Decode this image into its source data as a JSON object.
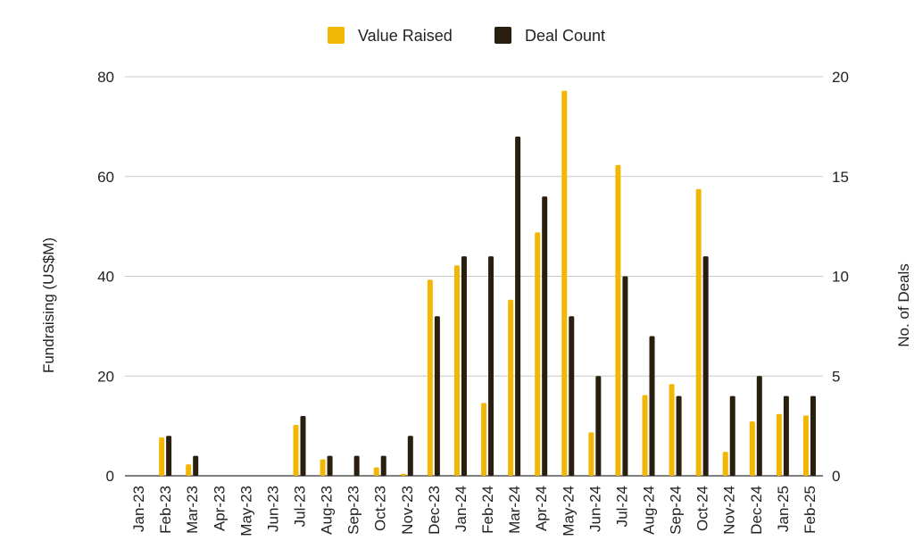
{
  "chart_data": {
    "type": "bar",
    "categories": [
      "Jan-23",
      "Feb-23",
      "Mar-23",
      "Apr-23",
      "May-23",
      "Jun-23",
      "Jul-23",
      "Aug-23",
      "Sep-23",
      "Oct-23",
      "Nov-23",
      "Dec-23",
      "Jan-24",
      "Feb-24",
      "Mar-24",
      "Apr-24",
      "May-24",
      "Jun-24",
      "Jul-24",
      "Aug-24",
      "Sep-24",
      "Oct-24",
      "Nov-24",
      "Dec-24",
      "Jan-25",
      "Feb-25"
    ],
    "series": [
      {
        "name": "Value Raised",
        "axis": "left",
        "color": "#F2B705",
        "values": [
          0,
          7.7,
          2.3,
          0,
          0,
          0,
          10.2,
          3.3,
          0,
          1.7,
          0.4,
          39.3,
          42.2,
          14.6,
          35.3,
          48.8,
          77.2,
          8.7,
          62.3,
          16.2,
          18.4,
          57.5,
          4.8,
          10.9,
          12.4,
          12.1
        ]
      },
      {
        "name": "Deal Count",
        "axis": "right",
        "color": "#2A1E0F",
        "values": [
          0,
          2,
          1,
          0,
          0,
          0,
          3,
          1,
          1,
          1,
          2,
          8,
          11,
          11,
          17,
          14,
          8,
          5,
          10,
          7,
          4,
          11,
          4,
          5,
          4,
          4
        ]
      }
    ],
    "ylabel": "Fundraising (US$M)",
    "y2label": "No. of Deals",
    "ylim": [
      0,
      80
    ],
    "y2lim": [
      0,
      20
    ],
    "yticks": [
      "0",
      "20",
      "40",
      "60",
      "80"
    ],
    "y2ticks": [
      "0",
      "5",
      "10",
      "15",
      "20"
    ],
    "grid": true,
    "legend_position": "top"
  }
}
